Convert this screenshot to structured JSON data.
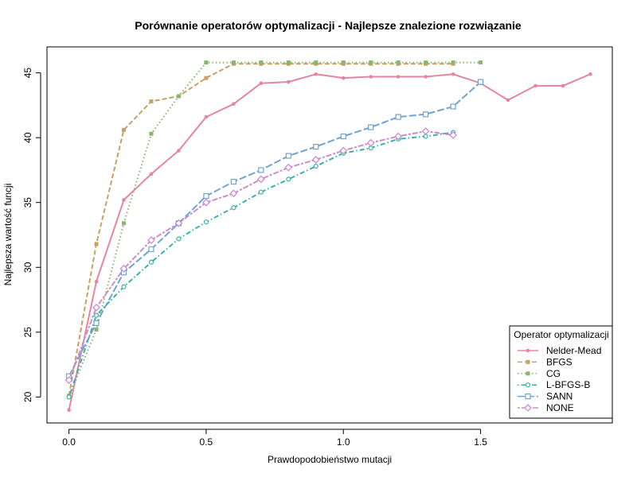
{
  "chart_data": {
    "type": "line",
    "title": "Porównanie operatorów optymalizacji - Najlepsze znalezione rozwiązanie",
    "xlabel": "Prawdopodobieństwo mutacji",
    "ylabel": "Najlepsza wartość funcji",
    "xlim": [
      -0.08,
      1.98
    ],
    "ylim": [
      18,
      47
    ],
    "x_ticks": [
      0.0,
      0.5,
      1.0,
      1.5
    ],
    "x_tick_labels": [
      "0.0",
      "0.5",
      "1.0",
      "1.5"
    ],
    "y_ticks": [
      20,
      25,
      30,
      35,
      40,
      45
    ],
    "y_tick_labels": [
      "20",
      "25",
      "30",
      "35",
      "40",
      "45"
    ],
    "grid": false,
    "legend": {
      "title": "Operator optymalizacji",
      "position": "bottom-right"
    },
    "series": [
      {
        "name": "Nelder-Mead",
        "color": "#e5869e",
        "dash": "solid",
        "marker": "dot",
        "x": [
          0.0,
          0.1,
          0.2,
          0.3,
          0.4,
          0.5,
          0.6,
          0.7,
          0.8,
          0.9,
          1.0,
          1.1,
          1.2,
          1.3,
          1.4,
          1.5,
          1.6,
          1.7,
          1.8,
          1.9
        ],
        "y": [
          19.0,
          28.9,
          35.2,
          37.2,
          39.0,
          41.6,
          42.6,
          44.2,
          44.3,
          44.9,
          44.6,
          44.7,
          44.7,
          44.7,
          44.9,
          44.2,
          42.9,
          44.0,
          44.0,
          44.9
        ]
      },
      {
        "name": "BFGS",
        "color": "#c9a065",
        "dash": "dashed",
        "marker": "square",
        "x": [
          0.0,
          0.1,
          0.2,
          0.3,
          0.4,
          0.5,
          0.6,
          0.7,
          0.8,
          0.9,
          1.0,
          1.1,
          1.2,
          1.3,
          1.4
        ],
        "y": [
          20.1,
          31.8,
          40.6,
          42.8,
          43.2,
          44.6,
          45.7,
          45.7,
          45.7,
          45.7,
          45.7,
          45.7,
          45.7,
          45.7,
          45.7
        ]
      },
      {
        "name": "CG",
        "color": "#8ab56b",
        "dash": "dotted",
        "marker": "square",
        "x": [
          0.0,
          0.1,
          0.2,
          0.3,
          0.4,
          0.5,
          0.6,
          0.7,
          0.8,
          0.9,
          1.0,
          1.1,
          1.2,
          1.3,
          1.4,
          1.5
        ],
        "y": [
          20.0,
          25.2,
          33.4,
          40.3,
          43.2,
          45.8,
          45.8,
          45.8,
          45.8,
          45.8,
          45.8,
          45.8,
          45.8,
          45.8,
          45.8,
          45.8
        ]
      },
      {
        "name": "L-BFGS-B",
        "color": "#37b2a8",
        "dash": "dotdash",
        "marker": "circle",
        "x": [
          0.0,
          0.1,
          0.2,
          0.3,
          0.4,
          0.5,
          0.6,
          0.7,
          0.8,
          0.9,
          1.0,
          1.1,
          1.2,
          1.3,
          1.4
        ],
        "y": [
          20.0,
          26.3,
          28.5,
          30.4,
          32.2,
          33.5,
          34.6,
          35.8,
          36.8,
          37.8,
          38.8,
          39.2,
          39.9,
          40.1,
          40.4
        ]
      },
      {
        "name": "SANN",
        "color": "#6fa3d2",
        "dash": "longdash",
        "marker": "square-open",
        "x": [
          0.0,
          0.1,
          0.2,
          0.3,
          0.4,
          0.5,
          0.6,
          0.7,
          0.8,
          0.9,
          1.0,
          1.1,
          1.2,
          1.3,
          1.4,
          1.5
        ],
        "y": [
          21.6,
          25.7,
          29.6,
          31.4,
          33.4,
          35.5,
          36.6,
          37.5,
          38.6,
          39.3,
          40.1,
          40.8,
          41.6,
          41.8,
          42.4,
          44.3
        ]
      },
      {
        "name": "NONE",
        "color": "#c98ecf",
        "dash": "twodash",
        "marker": "diamond-open",
        "x": [
          0.0,
          0.1,
          0.2,
          0.3,
          0.4,
          0.5,
          0.6,
          0.7,
          0.8,
          0.9,
          1.0,
          1.1,
          1.2,
          1.3,
          1.4
        ],
        "y": [
          21.3,
          26.9,
          29.9,
          32.1,
          33.4,
          35.0,
          35.7,
          36.8,
          37.7,
          38.3,
          39.0,
          39.6,
          40.1,
          40.5,
          40.2
        ]
      }
    ]
  }
}
